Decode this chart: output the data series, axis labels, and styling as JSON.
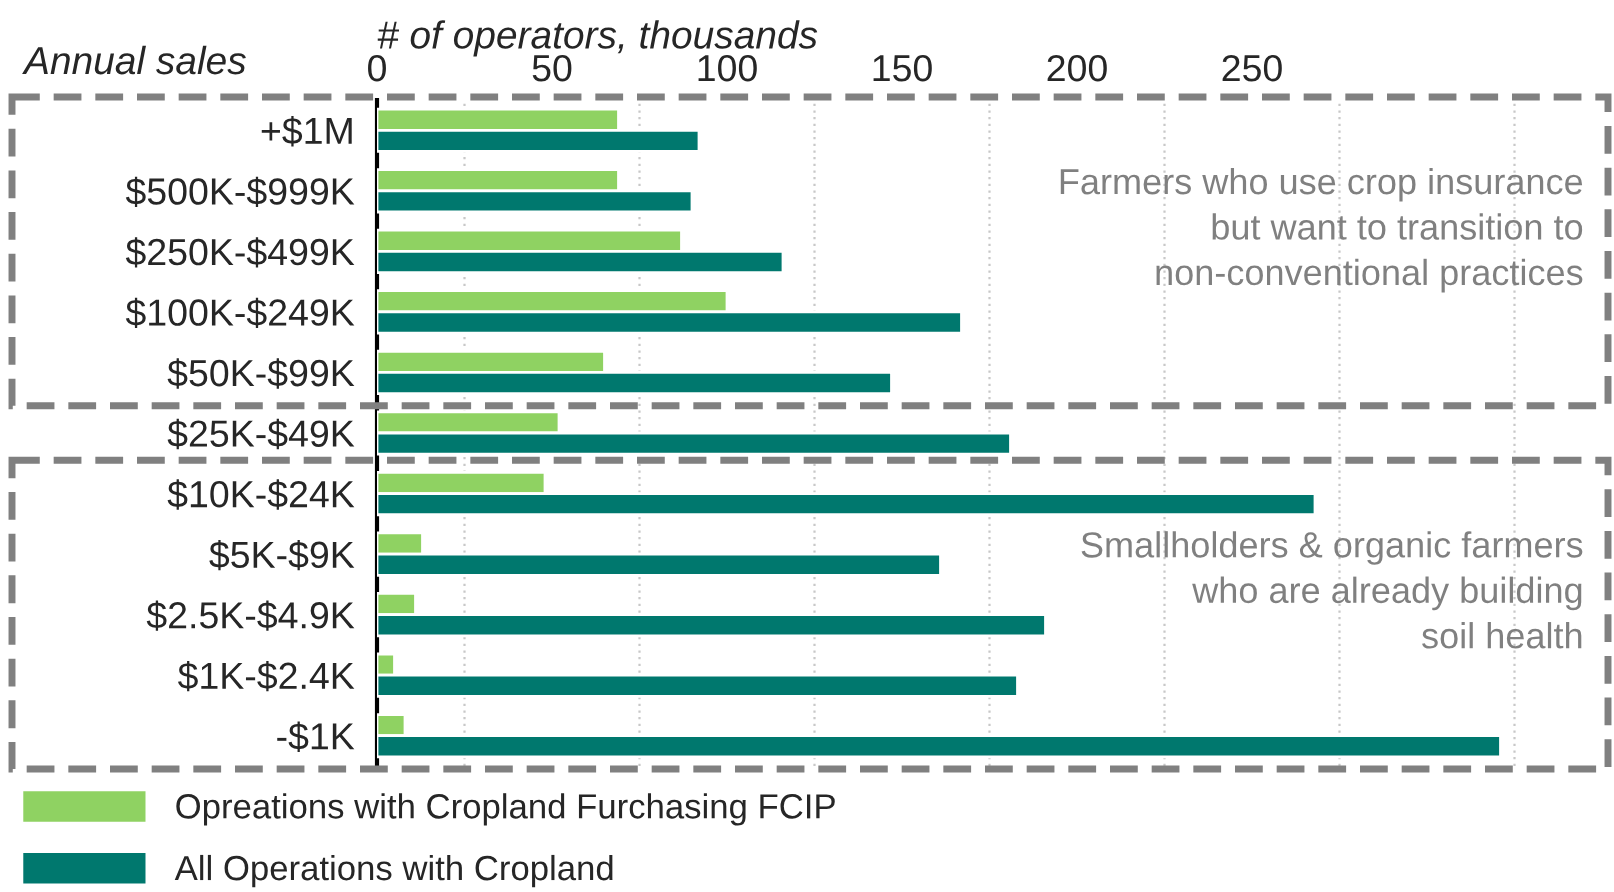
{
  "chart_data": {
    "type": "bar",
    "orientation": "horizontal",
    "xlabel": "# of operators, thousands",
    "ylabel": "Annual sales",
    "categories": [
      "+$1M",
      "$500K-$999K",
      "$250K-$499K",
      "$100K-$249K",
      "$50K-$99K",
      "$25K-$49K",
      "$10K-$24K",
      "$5K-$9K",
      "$2.5K-$4.9K",
      "$1K-$2.4K",
      "-$1K"
    ],
    "series": [
      {
        "name": "Opreations with Cropland Furchasing FCIP",
        "color": "#8fd262",
        "values": [
          69,
          69,
          87,
          100,
          65,
          52,
          48,
          13,
          11,
          5,
          8
        ]
      },
      {
        "name": "All Operations with Cropland",
        "color": "#00786e",
        "values": [
          92,
          90,
          116,
          167,
          147,
          181,
          268,
          161,
          191,
          183,
          321
        ]
      }
    ],
    "xlim": [
      0,
      350
    ],
    "xticks": [
      0,
      {
        "value": 25,
        "label": null
      },
      50,
      {
        "value": 75,
        "label": null
      },
      100,
      {
        "value": 125,
        "label": null
      },
      150,
      {
        "value": 175,
        "label": null
      },
      200,
      {
        "value": 225,
        "label": null
      },
      250,
      {
        "value": 275,
        "label": null
      },
      {
        "value": 325,
        "label": null
      }
    ],
    "grid": "x",
    "annotations": [
      "Farmers who use crop insurance\nbut want to transition to\nnon-conventional practices",
      "Smallholders & organic farmers\nwho are already building\nsoil health"
    ],
    "legend": "bottom left"
  }
}
